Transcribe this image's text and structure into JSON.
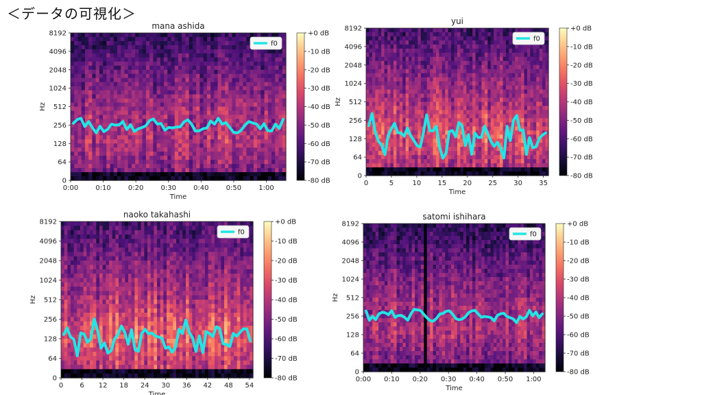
{
  "slide": {
    "title": "＜データの可視化＞"
  },
  "colors": {
    "f0": "#22e5e5",
    "cbar_high": "#fcfdbf",
    "cbar_low": "#000004"
  },
  "chart_data": [
    {
      "type": "heatmap",
      "title": "mana ashida",
      "xlabel": "Time",
      "ylabel": "Hz",
      "x_ticks": [
        "0:00",
        "0:10",
        "0:20",
        "0:30",
        "0:40",
        "0:50",
        "1:00"
      ],
      "x_range": [
        0,
        66
      ],
      "y_scale": "log",
      "y_ticks": [
        "0",
        "64",
        "128",
        "256",
        "512",
        "1024",
        "2048",
        "4096",
        "8192"
      ],
      "colorbar": [
        "+0 dB",
        "-10 dB",
        "-20 dB",
        "-30 dB",
        "-40 dB",
        "-50 dB",
        "-60 dB",
        "-70 dB",
        "-80 dB"
      ],
      "legend": [
        "f0"
      ],
      "legend_position": "top-right",
      "f0_band_hz": [
        190,
        330
      ]
    },
    {
      "type": "heatmap",
      "title": "yui",
      "xlabel": "Time",
      "ylabel": "Hz",
      "x_ticks": [
        "0",
        "5",
        "10",
        "15",
        "20",
        "25",
        "30",
        "35"
      ],
      "x_range": [
        0,
        36
      ],
      "y_scale": "log",
      "y_ticks": [
        "0",
        "64",
        "128",
        "256",
        "512",
        "1024",
        "2048",
        "4096",
        "8192"
      ],
      "colorbar": [
        "+0 dB",
        "-10 dB",
        "-20 dB",
        "-30 dB",
        "-40 dB",
        "-50 dB",
        "-60 dB",
        "-70 dB",
        "-80 dB"
      ],
      "legend": [
        "f0"
      ],
      "legend_position": "top-right",
      "f0_band_hz": [
        60,
        330
      ]
    },
    {
      "type": "heatmap",
      "title": "naoko takahashi",
      "xlabel": "Time",
      "ylabel": "Hz",
      "x_ticks": [
        "0",
        "6",
        "12",
        "18",
        "24",
        "30",
        "36",
        "42",
        "48",
        "54"
      ],
      "x_range": [
        0,
        55
      ],
      "y_scale": "log",
      "y_ticks": [
        "0",
        "64",
        "128",
        "256",
        "512",
        "1024",
        "2048",
        "4096",
        "8192"
      ],
      "colorbar": [
        "+0 dB",
        "-10 dB",
        "-20 dB",
        "-30 dB",
        "-40 dB",
        "-50 dB",
        "-60 dB",
        "-70 dB",
        "-80 dB"
      ],
      "legend": [
        "f0"
      ],
      "legend_position": "top-right",
      "f0_band_hz": [
        70,
        260
      ]
    },
    {
      "type": "heatmap",
      "title": "satomi ishihara",
      "xlabel": "Time",
      "ylabel": "Hz",
      "x_ticks": [
        "0:00",
        "0:10",
        "0:20",
        "0:30",
        "0:40",
        "0:50",
        "1:00"
      ],
      "x_range": [
        0,
        64
      ],
      "y_scale": "log",
      "y_ticks": [
        "0",
        "64",
        "128",
        "256",
        "512",
        "1024",
        "2048",
        "4096",
        "8192"
      ],
      "colorbar": [
        "+0 dB",
        "-10 dB",
        "-20 dB",
        "-30 dB",
        "-40 dB",
        "-50 dB",
        "-60 dB",
        "-70 dB",
        "-80 dB"
      ],
      "legend": [
        "f0"
      ],
      "legend_position": "top-right",
      "f0_band_hz": [
        200,
        350
      ]
    }
  ]
}
